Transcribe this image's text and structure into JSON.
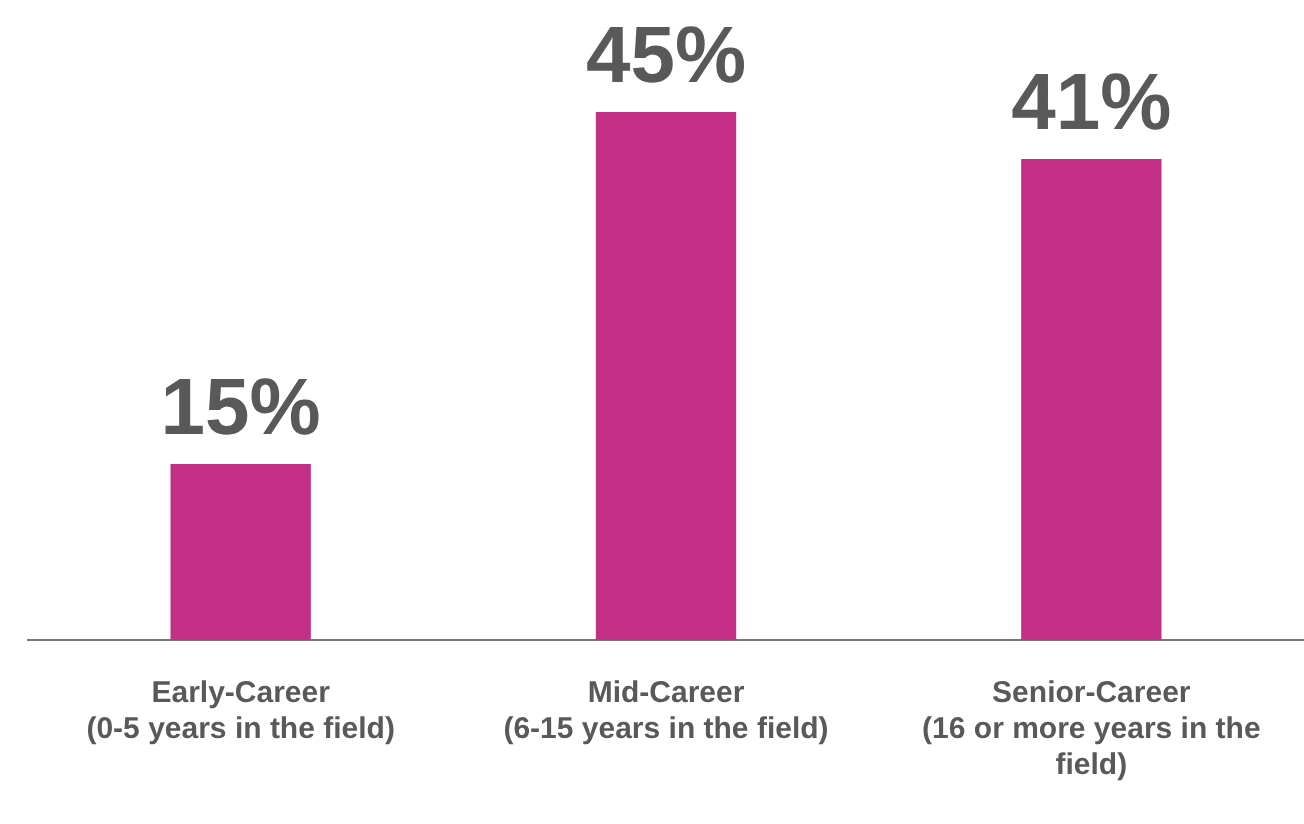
{
  "chart_data": {
    "type": "bar",
    "categories": [
      "Early-Career (0-5 years in the field)",
      "Mid-Career (6-15 years in the field)",
      "Senior-Career (16 or more years in the field)"
    ],
    "values": [
      15,
      45,
      41
    ],
    "value_labels": [
      "15%",
      "45%",
      "41%"
    ],
    "color": "#c42f86",
    "grid": false,
    "legend": false
  }
}
